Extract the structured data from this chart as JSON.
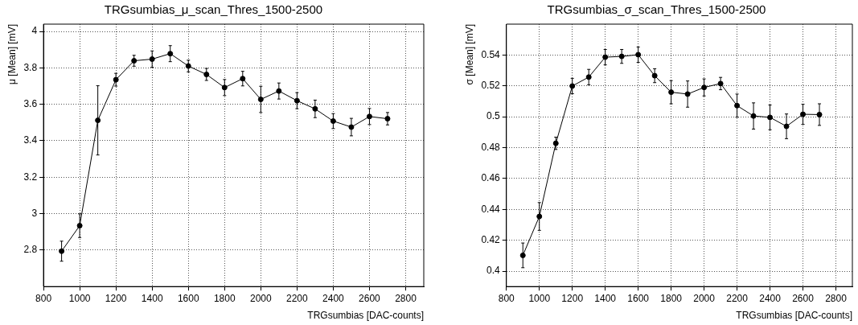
{
  "chart_data": [
    {
      "type": "line",
      "title": "TRGsumbias_μ_scan_Thres_1500-2500",
      "xlabel": "TRGsumbias [DAC-counts]",
      "ylabel": "μ [Mean] [mV]",
      "x": [
        900,
        1000,
        1100,
        1200,
        1300,
        1400,
        1500,
        1600,
        1700,
        1800,
        1900,
        2000,
        2100,
        2200,
        2300,
        2400,
        2500,
        2600,
        2700
      ],
      "series": [
        {
          "color": "#000000",
          "values": [
            2.794,
            2.934,
            3.512,
            3.735,
            3.839,
            3.848,
            3.878,
            3.81,
            3.764,
            3.692,
            3.741,
            3.627,
            3.673,
            3.62,
            3.575,
            3.508,
            3.475,
            3.533,
            3.521
          ],
          "errors": [
            0.055,
            0.065,
            0.19,
            0.035,
            0.03,
            0.045,
            0.044,
            0.032,
            0.033,
            0.044,
            0.04,
            0.072,
            0.044,
            0.044,
            0.048,
            0.041,
            0.048,
            0.044,
            0.034
          ]
        }
      ],
      "xlim": [
        800,
        2900
      ],
      "xticks": [
        800,
        1000,
        1200,
        1400,
        1600,
        1800,
        2000,
        2200,
        2400,
        2600,
        2800
      ],
      "ylim": [
        2.6,
        4.04
      ],
      "yticks": [
        2.8,
        3,
        3.2,
        3.4,
        3.6,
        3.8,
        4
      ],
      "grid": true,
      "marker": "circle",
      "line_style": "solid"
    },
    {
      "type": "line",
      "title": "TRGsumbias_σ_scan_Thres_1500-2500",
      "xlabel": "TRGsumbias [DAC-counts]",
      "ylabel": "σ [Mean] [mV]",
      "x": [
        900,
        1000,
        1100,
        1200,
        1300,
        1400,
        1500,
        1600,
        1700,
        1800,
        1900,
        2000,
        2100,
        2200,
        2300,
        2400,
        2500,
        2600,
        2700
      ],
      "series": [
        {
          "color": "#000000",
          "values": [
            0.4102,
            0.4354,
            0.4828,
            0.5199,
            0.5257,
            0.5386,
            0.5391,
            0.5402,
            0.5266,
            0.5159,
            0.5147,
            0.519,
            0.5215,
            0.5072,
            0.5005,
            0.4996,
            0.4938,
            0.5016,
            0.5014
          ],
          "errors": [
            0.008,
            0.009,
            0.004,
            0.005,
            0.005,
            0.005,
            0.0045,
            0.005,
            0.0045,
            0.0075,
            0.0085,
            0.0055,
            0.004,
            0.0075,
            0.0085,
            0.008,
            0.008,
            0.0065,
            0.007
          ]
        }
      ],
      "xlim": [
        800,
        2900
      ],
      "xticks": [
        800,
        1000,
        1200,
        1400,
        1600,
        1800,
        2000,
        2200,
        2400,
        2600,
        2800
      ],
      "ylim": [
        0.39,
        0.56
      ],
      "yticks": [
        0.4,
        0.42,
        0.44,
        0.46,
        0.48,
        0.5,
        0.52,
        0.54
      ],
      "grid": true,
      "marker": "circle",
      "line_style": "solid"
    }
  ]
}
